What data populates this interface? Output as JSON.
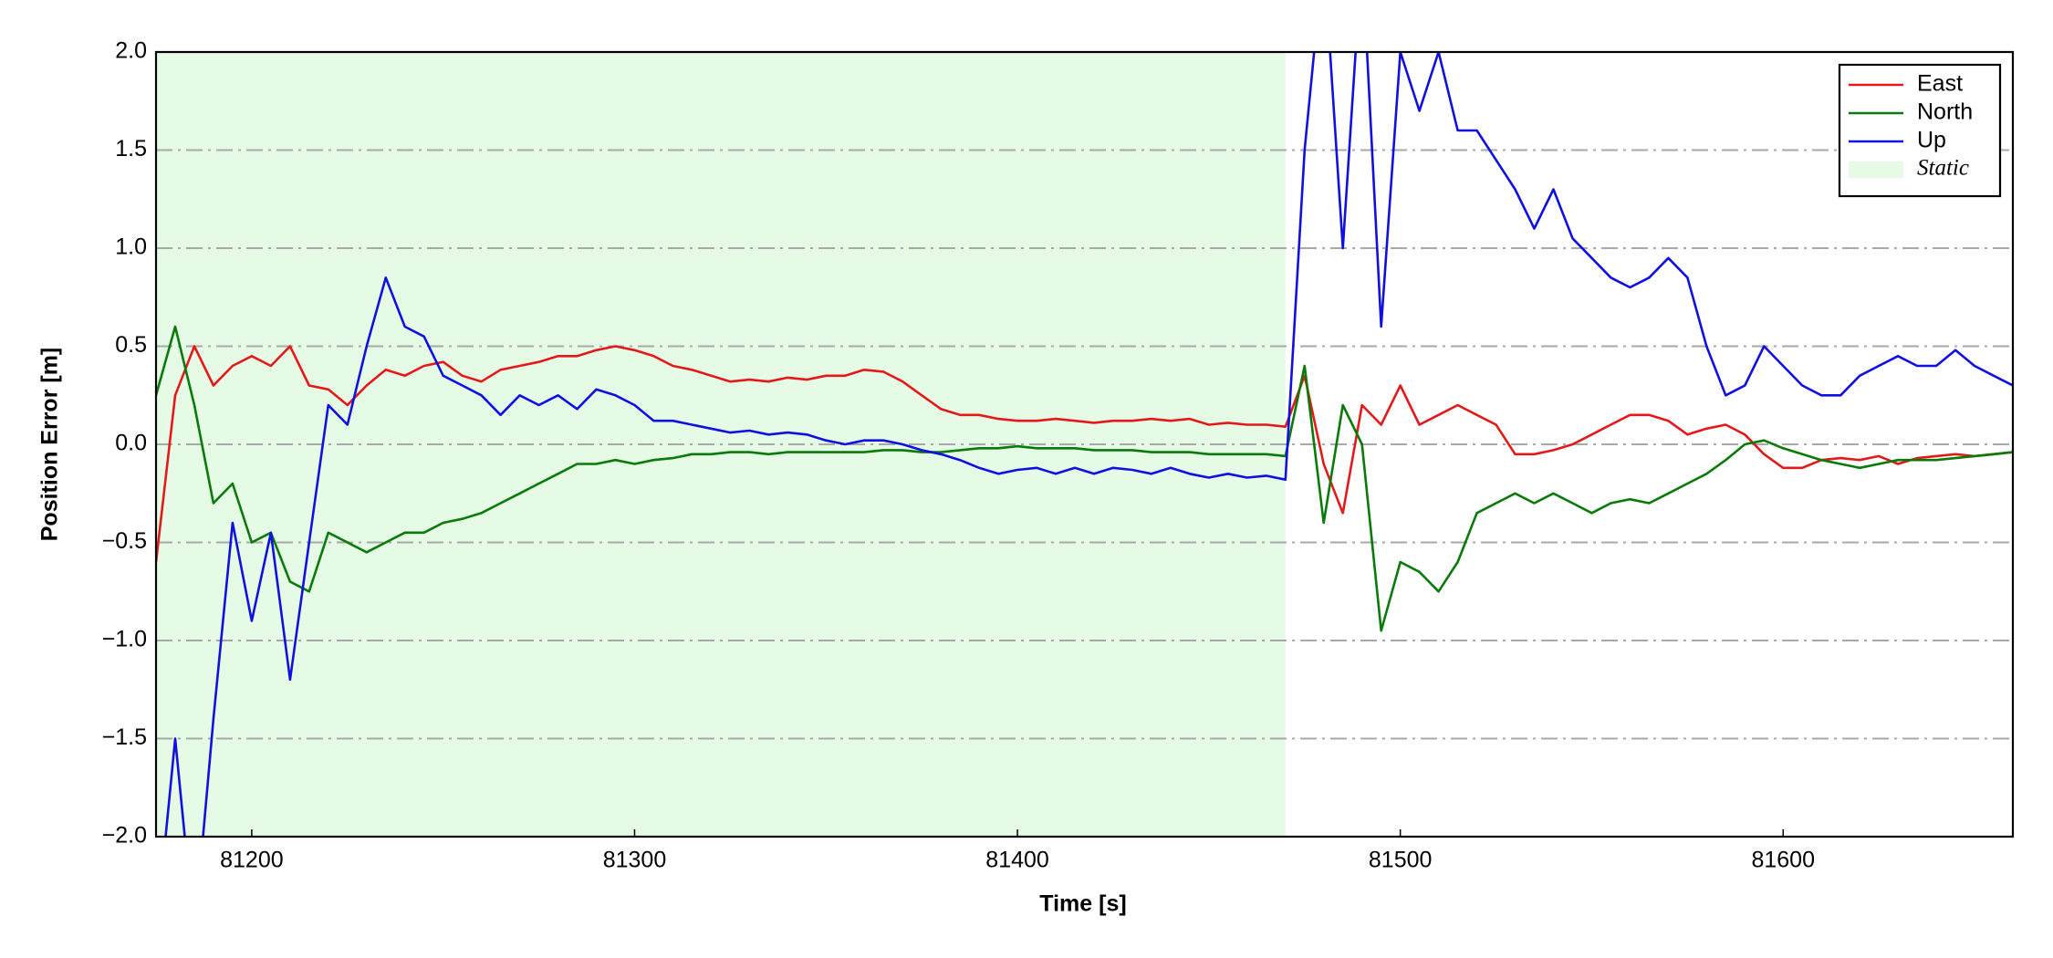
{
  "chart_data": {
    "type": "line",
    "xlabel": "Time [s]",
    "ylabel": "Position Error [m]",
    "x": [
      81175,
      81180,
      81185,
      81190,
      81195,
      81200,
      81205,
      81210,
      81215,
      81220,
      81225,
      81230,
      81235,
      81240,
      81245,
      81250,
      81255,
      81260,
      81265,
      81270,
      81275,
      81280,
      81285,
      81290,
      81295,
      81300,
      81305,
      81310,
      81315,
      81320,
      81325,
      81330,
      81335,
      81340,
      81345,
      81350,
      81355,
      81360,
      81365,
      81370,
      81375,
      81380,
      81385,
      81390,
      81395,
      81400,
      81405,
      81410,
      81415,
      81420,
      81425,
      81430,
      81435,
      81440,
      81445,
      81450,
      81455,
      81460,
      81465,
      81470,
      81475,
      81480,
      81485,
      81490,
      81495,
      81500,
      81505,
      81510,
      81515,
      81520,
      81525,
      81530,
      81535,
      81540,
      81545,
      81550,
      81555,
      81560,
      81565,
      81570,
      81575,
      81580,
      81585,
      81590,
      81595,
      81600,
      81605,
      81610,
      81615,
      81620,
      81625,
      81630,
      81635,
      81640,
      81645,
      81650,
      81655,
      81660
    ],
    "series": [
      {
        "name": "East",
        "color": "#e41a1a",
        "values": [
          -0.6,
          0.25,
          0.5,
          0.3,
          0.4,
          0.45,
          0.4,
          0.5,
          0.3,
          0.28,
          0.2,
          0.3,
          0.38,
          0.35,
          0.4,
          0.42,
          0.35,
          0.32,
          0.38,
          0.4,
          0.42,
          0.45,
          0.45,
          0.48,
          0.5,
          0.48,
          0.45,
          0.4,
          0.38,
          0.35,
          0.32,
          0.33,
          0.32,
          0.34,
          0.33,
          0.35,
          0.35,
          0.38,
          0.37,
          0.32,
          0.25,
          0.18,
          0.15,
          0.15,
          0.13,
          0.12,
          0.12,
          0.13,
          0.12,
          0.11,
          0.12,
          0.12,
          0.13,
          0.12,
          0.13,
          0.1,
          0.11,
          0.1,
          0.1,
          0.09,
          0.35,
          -0.1,
          -0.35,
          0.2,
          0.1,
          0.3,
          0.1,
          0.15,
          0.2,
          0.15,
          0.1,
          -0.05,
          -0.05,
          -0.03,
          0.0,
          0.05,
          0.1,
          0.15,
          0.15,
          0.12,
          0.05,
          0.08,
          0.1,
          0.05,
          -0.05,
          -0.12,
          -0.12,
          -0.08,
          -0.07,
          -0.08,
          -0.06,
          -0.1,
          -0.07,
          -0.06,
          -0.05,
          -0.06,
          -0.05,
          -0.04
        ]
      },
      {
        "name": "North",
        "color": "#0a7a0a",
        "values": [
          0.25,
          0.6,
          0.2,
          -0.3,
          -0.2,
          -0.5,
          -0.45,
          -0.7,
          -0.75,
          -0.45,
          -0.5,
          -0.55,
          -0.5,
          -0.45,
          -0.45,
          -0.4,
          -0.38,
          -0.35,
          -0.3,
          -0.25,
          -0.2,
          -0.15,
          -0.1,
          -0.1,
          -0.08,
          -0.1,
          -0.08,
          -0.07,
          -0.05,
          -0.05,
          -0.04,
          -0.04,
          -0.05,
          -0.04,
          -0.04,
          -0.04,
          -0.04,
          -0.04,
          -0.03,
          -0.03,
          -0.04,
          -0.04,
          -0.03,
          -0.02,
          -0.02,
          -0.01,
          -0.02,
          -0.02,
          -0.02,
          -0.03,
          -0.03,
          -0.03,
          -0.04,
          -0.04,
          -0.04,
          -0.05,
          -0.05,
          -0.05,
          -0.05,
          -0.06,
          0.4,
          -0.4,
          0.2,
          0.0,
          -0.95,
          -0.6,
          -0.65,
          -0.75,
          -0.6,
          -0.35,
          -0.3,
          -0.25,
          -0.3,
          -0.25,
          -0.3,
          -0.35,
          -0.3,
          -0.28,
          -0.3,
          -0.25,
          -0.2,
          -0.15,
          -0.08,
          0.0,
          0.02,
          -0.02,
          -0.05,
          -0.08,
          -0.1,
          -0.12,
          -0.1,
          -0.08,
          -0.08,
          -0.08,
          -0.07,
          -0.06,
          -0.05,
          -0.04
        ]
      },
      {
        "name": "Up",
        "color": "#1010e0",
        "values": [
          -2.5,
          -1.5,
          -2.5,
          -1.4,
          -0.4,
          -0.9,
          -0.45,
          -1.2,
          -0.5,
          0.2,
          0.1,
          0.5,
          0.85,
          0.6,
          0.55,
          0.35,
          0.3,
          0.25,
          0.15,
          0.25,
          0.2,
          0.25,
          0.18,
          0.28,
          0.25,
          0.2,
          0.12,
          0.12,
          0.1,
          0.08,
          0.06,
          0.07,
          0.05,
          0.06,
          0.05,
          0.02,
          0.0,
          0.02,
          0.02,
          0.0,
          -0.03,
          -0.05,
          -0.08,
          -0.12,
          -0.15,
          -0.13,
          -0.12,
          -0.15,
          -0.12,
          -0.15,
          -0.12,
          -0.13,
          -0.15,
          -0.12,
          -0.15,
          -0.17,
          -0.15,
          -0.17,
          -0.16,
          -0.18,
          1.5,
          2.5,
          1.0,
          2.5,
          0.6,
          2.0,
          1.7,
          2.0,
          1.6,
          1.6,
          1.45,
          1.3,
          1.1,
          1.3,
          1.05,
          0.95,
          0.85,
          0.8,
          0.85,
          0.95,
          0.85,
          0.5,
          0.25,
          0.3,
          0.5,
          0.4,
          0.3,
          0.25,
          0.25,
          0.35,
          0.4,
          0.45,
          0.4,
          0.4,
          0.48,
          0.4,
          0.35,
          0.3
        ]
      }
    ],
    "spans": [
      {
        "name": "Static",
        "start": 81175,
        "end": 81470,
        "color": "#e6fbe6"
      }
    ],
    "xlim": [
      81175,
      81660
    ],
    "xticks": [
      81200,
      81300,
      81400,
      81500,
      81600
    ],
    "ylim": [
      -2,
      2
    ],
    "yticks": [
      {
        "value": -2,
        "label": "−2.0"
      },
      {
        "value": -1.5,
        "label": "−1.5"
      },
      {
        "value": -1,
        "label": "−1.0"
      },
      {
        "value": -0.5,
        "label": "−0.5"
      },
      {
        "value": 0,
        "label": "0.0"
      },
      {
        "value": 0.5,
        "label": "0.5"
      },
      {
        "value": 1,
        "label": "1.0"
      },
      {
        "value": 1.5,
        "label": "1.5"
      },
      {
        "value": 2,
        "label": "2.0"
      }
    ],
    "grid": true,
    "legend": "upper right"
  }
}
